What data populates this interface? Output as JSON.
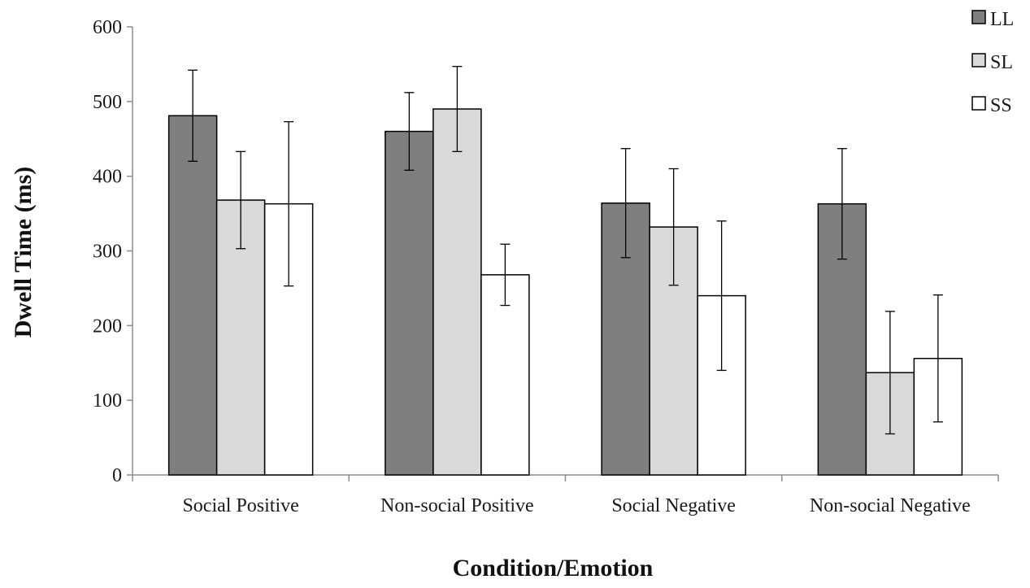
{
  "chart_data": {
    "type": "bar",
    "title": "",
    "xlabel": "Condition/Emotion",
    "ylabel": "Dwell Time (ms)",
    "ylim": [
      0,
      600
    ],
    "yticks": [
      "0",
      "100",
      "200",
      "300",
      "400",
      "500",
      "600"
    ],
    "categories": [
      "Social Positive",
      "Non-social Positive",
      "Social Negative",
      "Non-social Negative"
    ],
    "series": [
      {
        "name": "LL",
        "color": "#7f7f7f",
        "values": [
          481,
          460,
          364,
          363
        ],
        "errors": [
          61,
          52,
          73,
          74
        ]
      },
      {
        "name": "SL",
        "color": "#d9d9d9",
        "values": [
          368,
          490,
          332,
          137
        ],
        "errors": [
          65,
          57,
          78,
          82
        ]
      },
      {
        "name": "SS",
        "color": "#ffffff",
        "values": [
          363,
          268,
          240,
          156
        ],
        "errors": [
          110,
          41,
          100,
          85
        ]
      }
    ],
    "legend_position": "top-right",
    "grid": false
  }
}
